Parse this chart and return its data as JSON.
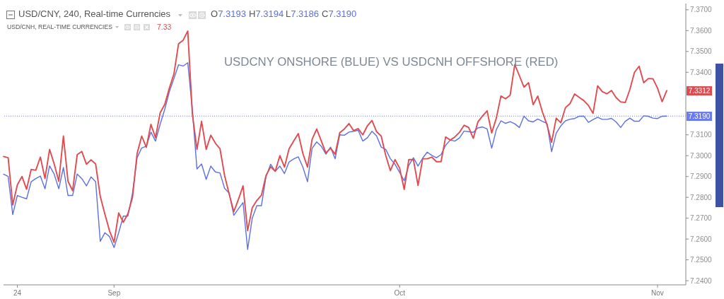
{
  "chart_data": {
    "type": "line",
    "title": "USDCNY ONSHORE (BLUE) VS USDCNH OFFSHORE (RED)",
    "categories": [
      null,
      null,
      null,
      "24",
      null,
      null,
      null,
      null,
      null,
      null,
      null,
      null,
      null,
      null,
      null,
      null,
      null,
      null,
      null,
      null,
      null,
      null,
      null,
      null,
      "Sep",
      null,
      null,
      null,
      null,
      null,
      null,
      null,
      null,
      null,
      null,
      null,
      null,
      null,
      null,
      null,
      null,
      null,
      null,
      null,
      null,
      null,
      null,
      null,
      null,
      null,
      null,
      null,
      null,
      null,
      null,
      null,
      null,
      null,
      null,
      null,
      null,
      null,
      null,
      null,
      null,
      null,
      null,
      null,
      null,
      null,
      null,
      null,
      null,
      null,
      null,
      null,
      null,
      null,
      null,
      null,
      null,
      null,
      null,
      null,
      null,
      null,
      "Oct",
      null,
      null,
      null,
      null,
      null,
      null,
      null,
      null,
      null,
      null,
      null,
      null,
      null,
      null,
      null,
      null,
      null,
      null,
      null,
      null,
      null,
      null,
      null,
      null,
      null,
      null,
      null,
      null,
      null,
      null,
      null,
      null,
      null,
      null,
      null,
      null,
      null,
      null,
      null,
      null,
      null,
      null,
      null,
      null,
      null,
      null,
      null,
      null,
      null,
      null,
      null,
      null,
      null,
      null,
      null,
      "Nov",
      null,
      null
    ],
    "series": [
      {
        "color": "#5c70e4",
        "values": [
          7.2911,
          7.29,
          7.2717,
          7.2809,
          7.28,
          7.2793,
          7.2875,
          7.289,
          7.2902,
          7.2841,
          7.2951,
          7.2911,
          7.2841,
          7.2943,
          7.2809,
          7.2809,
          7.2912,
          7.289,
          7.2855,
          7.2898,
          7.2875,
          7.2589,
          7.263,
          7.2612,
          7.2559,
          7.263,
          7.271,
          7.271,
          7.282,
          7.299,
          7.3037,
          7.3045,
          7.3113,
          7.307,
          7.315,
          7.3222,
          7.3307,
          7.337,
          7.3436,
          7.343,
          7.3446,
          7.322,
          7.2936,
          7.296,
          7.2886,
          7.295,
          7.2922,
          7.2917,
          7.2843,
          7.282,
          7.2714,
          7.2745,
          7.2775,
          7.255,
          7.27,
          7.276,
          7.276,
          7.29,
          7.2959,
          7.2925,
          7.295,
          7.2914,
          7.297,
          7.2984,
          7.2994,
          7.2945,
          7.2875,
          7.3035,
          7.3066,
          7.3045,
          7.3007,
          7.3041,
          7.2985,
          7.31,
          7.3098,
          7.3113,
          7.3117,
          7.3122,
          7.307,
          7.3086,
          7.3117,
          7.3095,
          7.3041,
          7.303,
          7.2985,
          7.2959,
          7.292,
          7.288,
          7.2954,
          7.299,
          7.295,
          7.2988,
          7.3017,
          7.3001,
          7.299,
          7.3005,
          7.305,
          7.3075,
          7.307,
          7.3085,
          7.3118,
          7.3115,
          7.3112,
          7.3133,
          7.3138,
          7.3128,
          7.3036,
          7.3125,
          7.3167,
          7.3155,
          7.3163,
          7.3153,
          7.3135,
          7.319,
          7.3167,
          7.3162,
          7.3176,
          7.3165,
          7.3155,
          7.3019,
          7.3108,
          7.3143,
          7.3167,
          7.3175,
          7.3178,
          7.3189,
          7.319,
          7.316,
          7.3173,
          7.3184,
          7.3174,
          7.3174,
          7.3179,
          7.3162,
          7.3135,
          7.3165,
          7.318,
          7.3165,
          7.3165,
          7.3191,
          7.3189,
          7.318,
          7.3178,
          7.3189,
          7.319
        ]
      },
      {
        "color": "#e04b4f",
        "values": [
          7.2996,
          7.299,
          7.2764,
          7.286,
          7.29,
          7.2839,
          7.2934,
          7.293,
          7.2993,
          7.289,
          7.303,
          7.296,
          7.2877,
          7.3094,
          7.2877,
          7.2832,
          7.3005,
          7.302,
          7.2959,
          7.298,
          7.296,
          7.2805,
          7.272,
          7.264,
          7.2584,
          7.2725,
          7.268,
          7.2721,
          7.28,
          7.301,
          7.3094,
          7.304,
          7.315,
          7.3086,
          7.3205,
          7.3246,
          7.3324,
          7.3392,
          7.3537,
          7.3554,
          7.3598,
          7.32,
          7.303,
          7.3165,
          7.303,
          7.3098,
          7.306,
          7.3033,
          7.2905,
          7.2815,
          7.2731,
          7.279,
          7.2855,
          7.264,
          7.275,
          7.2785,
          7.281,
          7.2905,
          7.2947,
          7.2925,
          7.3,
          7.2945,
          7.3033,
          7.307,
          7.3106,
          7.301,
          7.2945,
          7.3078,
          7.3128,
          7.307,
          7.3013,
          7.3036,
          7.3007,
          7.311,
          7.3128,
          7.3154,
          7.312,
          7.313,
          7.31,
          7.3143,
          7.3169,
          7.3115,
          7.3094,
          7.3,
          7.2928,
          7.2981,
          7.294,
          7.2838,
          7.2981,
          7.2981,
          7.2857,
          7.2985,
          7.2985,
          7.2993,
          7.2971,
          7.2971,
          7.309,
          7.3075,
          7.309,
          7.3112,
          7.3146,
          7.3135,
          7.3083,
          7.3162,
          7.319,
          7.3215,
          7.3109,
          7.318,
          7.3286,
          7.3273,
          7.329,
          7.3437,
          7.3384,
          7.3329,
          7.335,
          7.3245,
          7.3286,
          7.321,
          7.3148,
          7.3064,
          7.318,
          7.3158,
          7.323,
          7.325,
          7.3296,
          7.328,
          7.3264,
          7.3241,
          7.3203,
          7.3335,
          7.3307,
          7.3297,
          7.3313,
          7.3279,
          7.3258,
          7.3255,
          7.3318,
          7.34,
          7.3429,
          7.335,
          7.337,
          7.3369,
          7.3324,
          7.3259,
          7.3312
        ]
      }
    ],
    "ylim": [
      7.238,
      7.373
    ],
    "yticks": [
      {
        "value": 7.24,
        "label": "7.2400"
      },
      {
        "value": 7.25,
        "label": "7.2500"
      },
      {
        "value": 7.26,
        "label": "7.2600"
      },
      {
        "value": 7.27,
        "label": "7.2700"
      },
      {
        "value": 7.28,
        "label": "7.2800"
      },
      {
        "value": 7.29,
        "label": "7.2900"
      },
      {
        "value": 7.3,
        "label": "7.3000"
      },
      {
        "value": 7.31,
        "label": "7.3100"
      },
      {
        "value": 7.34,
        "label": "7.3400"
      },
      {
        "value": 7.35,
        "label": "7.3500"
      },
      {
        "value": 7.36,
        "label": "7.3600"
      },
      {
        "value": 7.37,
        "label": "7.3700"
      }
    ],
    "ref_lines": [
      {
        "axis": "y",
        "value": 7.319,
        "label": "7.3190",
        "color": "#6b7bf0",
        "line_style": "dotted"
      }
    ],
    "annotations": [
      "USD/CNY, 240, Real-time Currencies",
      "O7.3193",
      "H7.3194",
      "L7.3186",
      "C7.3190",
      "USD/CNH, REAL-TIME CURRENCIES",
      "7.33",
      "7.3312"
    ]
  }
}
